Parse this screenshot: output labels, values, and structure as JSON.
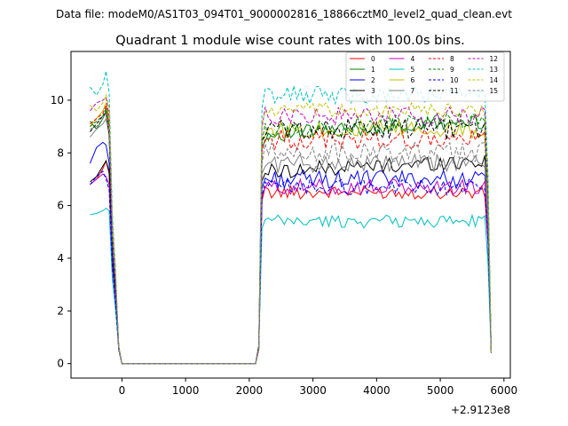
{
  "chart_data": {
    "type": "line",
    "suptitle": "Data file: modeM0/AS1T03_094T01_9000002816_18866cztM0_level2_quad_clean.evt",
    "title": "Quadrant 1 module wise count rates with 100.0s bins.",
    "xlabel": "",
    "ylabel": "",
    "x_offset_label": "+2.9123e8",
    "xlim": [
      -800,
      6100
    ],
    "ylim": [
      -0.55,
      11.85
    ],
    "x_ticks": [
      0,
      1000,
      2000,
      3000,
      4000,
      5000,
      6000
    ],
    "x_tick_labels": [
      "0",
      "1000",
      "2000",
      "3000",
      "4000",
      "5000",
      "6000"
    ],
    "y_ticks": [
      0,
      2,
      4,
      6,
      8,
      10
    ],
    "y_tick_labels": [
      "0",
      "2",
      "4",
      "6",
      "8",
      "10"
    ],
    "legend_position": "top-right",
    "series": [
      {
        "name": "0",
        "color": "#ff0000",
        "dash": "solid",
        "head": [
          6.8,
          7.0,
          7.4,
          7.7,
          7.2
        ],
        "level": 6.5,
        "amp": 0.25
      },
      {
        "name": "1",
        "color": "#008000",
        "dash": "solid",
        "head": [
          9.2,
          8.9,
          9.3,
          9.6,
          8.6
        ],
        "level": 8.7,
        "amp": 0.3
      },
      {
        "name": "2",
        "color": "#0000ff",
        "dash": "solid",
        "head": [
          7.6,
          8.2,
          8.4,
          8.3,
          7.6
        ],
        "level": 7.0,
        "amp": 0.35
      },
      {
        "name": "3",
        "color": "#000000",
        "dash": "solid",
        "head": [
          6.9,
          7.1,
          7.5,
          7.7,
          7.3
        ],
        "level": 7.3,
        "amp": 0.3
      },
      {
        "name": "4",
        "color": "#bf00bf",
        "dash": "solid",
        "head": [
          6.8,
          7.0,
          7.2,
          7.1,
          6.8
        ],
        "level": 6.7,
        "amp": 0.3
      },
      {
        "name": "5",
        "color": "#00bfbf",
        "dash": "solid",
        "head": [
          5.65,
          5.7,
          5.8,
          5.9,
          5.8
        ],
        "level": 5.4,
        "amp": 0.25
      },
      {
        "name": "6",
        "color": "#bfbf00",
        "dash": "solid",
        "head": [
          9.0,
          9.3,
          9.6,
          9.9,
          9.3
        ],
        "level": 8.9,
        "amp": 0.35
      },
      {
        "name": "7",
        "color": "#808080",
        "dash": "solid",
        "head": [
          8.6,
          8.9,
          9.1,
          9.3,
          8.7
        ],
        "level": 7.6,
        "amp": 0.35
      },
      {
        "name": "8",
        "color": "#ff0000",
        "dash": "dashed",
        "head": [
          9.1,
          9.3,
          9.5,
          9.8,
          9.0
        ],
        "level": 8.5,
        "amp": 0.4
      },
      {
        "name": "9",
        "color": "#008000",
        "dash": "dashed",
        "head": [
          9.0,
          9.2,
          9.4,
          9.7,
          9.0
        ],
        "level": 8.8,
        "amp": 0.35
      },
      {
        "name": "10",
        "color": "#0000ff",
        "dash": "dashed",
        "head": [
          6.8,
          7.1,
          7.3,
          7.0,
          6.6
        ],
        "level": 6.7,
        "amp": 0.3
      },
      {
        "name": "11",
        "color": "#000000",
        "dash": "dashed",
        "head": [
          8.8,
          9.1,
          9.4,
          9.5,
          8.7
        ],
        "level": 8.9,
        "amp": 0.4
      },
      {
        "name": "12",
        "color": "#bf00bf",
        "dash": "dashed",
        "head": [
          9.6,
          9.9,
          10.0,
          10.1,
          9.4
        ],
        "level": 9.4,
        "amp": 0.35
      },
      {
        "name": "13",
        "color": "#00bfbf",
        "dash": "dashed",
        "head": [
          10.5,
          10.2,
          10.6,
          11.1,
          10.3
        ],
        "level": 10.2,
        "amp": 0.35
      },
      {
        "name": "14",
        "color": "#bfbf00",
        "dash": "dashed",
        "head": [
          9.8,
          9.6,
          9.9,
          10.2,
          9.7
        ],
        "level": 9.6,
        "amp": 0.3
      },
      {
        "name": "15",
        "color": "#808080",
        "dash": "dashed",
        "head": [
          8.9,
          9.0,
          9.3,
          9.5,
          8.8
        ],
        "level": 8.0,
        "amp": 0.4
      }
    ],
    "x_gap": [
      0,
      2100
    ],
    "x_end": 5800,
    "bin_width": 100
  }
}
